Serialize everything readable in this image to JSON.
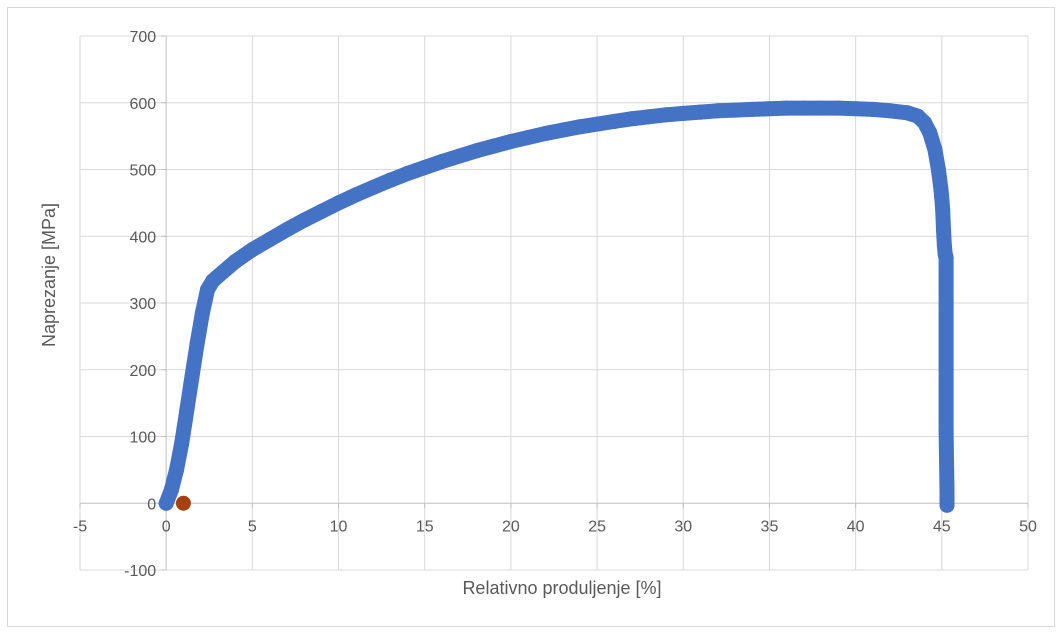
{
  "chart_data": {
    "type": "scatter",
    "title": "",
    "xlabel": "Relativno produljenje [%]",
    "ylabel": "Naprezanje [MPa]",
    "xlim": [
      -5,
      50
    ],
    "ylim": [
      -100,
      700
    ],
    "x_ticks": [
      -5,
      0,
      5,
      10,
      15,
      20,
      25,
      30,
      35,
      40,
      45,
      50
    ],
    "y_ticks": [
      -100,
      0,
      100,
      200,
      300,
      400,
      500,
      600,
      700
    ],
    "x_tick_labels": [
      "-5",
      "0",
      "5",
      "10",
      "15",
      "20",
      "25",
      "30",
      "35",
      "40",
      "45",
      "50"
    ],
    "y_tick_labels": [
      "-100",
      "0",
      "100",
      "200",
      "300",
      "400",
      "500",
      "600",
      "700"
    ],
    "grid": true,
    "legend": "none",
    "series": [
      {
        "color": "#4472c4",
        "style": "dense-markers",
        "points": [
          [
            0,
            0
          ],
          [
            0.3,
            20
          ],
          [
            0.6,
            50
          ],
          [
            0.9,
            90
          ],
          [
            1.2,
            140
          ],
          [
            1.5,
            190
          ],
          [
            1.8,
            240
          ],
          [
            2.1,
            285
          ],
          [
            2.4,
            320
          ],
          [
            2.7,
            333
          ],
          [
            3.0,
            340
          ],
          [
            4.0,
            362
          ],
          [
            5.0,
            380
          ],
          [
            6.0,
            395
          ],
          [
            7.0,
            410
          ],
          [
            8.0,
            424
          ],
          [
            9.0,
            437
          ],
          [
            10.0,
            450
          ],
          [
            11.0,
            462
          ],
          [
            12.0,
            473
          ],
          [
            13.0,
            484
          ],
          [
            14.0,
            494
          ],
          [
            15.0,
            503
          ],
          [
            16.0,
            512
          ],
          [
            17.0,
            520
          ],
          [
            18.0,
            528
          ],
          [
            19.0,
            535
          ],
          [
            20.0,
            542
          ],
          [
            21.0,
            548
          ],
          [
            22.0,
            554
          ],
          [
            23.0,
            559
          ],
          [
            24.0,
            564
          ],
          [
            25.0,
            568
          ],
          [
            26.0,
            572
          ],
          [
            27.0,
            576
          ],
          [
            28.0,
            579
          ],
          [
            29.0,
            582
          ],
          [
            30.0,
            584
          ],
          [
            31.0,
            586
          ],
          [
            32.0,
            588
          ],
          [
            33.0,
            589
          ],
          [
            34.0,
            590
          ],
          [
            35.0,
            591
          ],
          [
            36.0,
            592
          ],
          [
            37.0,
            592
          ],
          [
            38.0,
            592
          ],
          [
            39.0,
            592
          ],
          [
            40.0,
            591
          ],
          [
            41.0,
            590
          ],
          [
            42.0,
            588
          ],
          [
            43.0,
            585
          ],
          [
            43.6,
            580
          ],
          [
            44.0,
            570
          ],
          [
            44.3,
            555
          ],
          [
            44.6,
            530
          ],
          [
            44.8,
            500
          ],
          [
            44.95,
            470
          ],
          [
            45.05,
            440
          ],
          [
            45.1,
            410
          ],
          [
            45.15,
            385
          ],
          [
            45.2,
            372
          ],
          [
            45.25,
            368
          ],
          [
            45.25,
            297
          ],
          [
            45.25,
            200
          ],
          [
            45.25,
            108
          ],
          [
            45.3,
            18
          ],
          [
            45.3,
            0
          ],
          [
            45.3,
            -3
          ]
        ]
      },
      {
        "color": "#a5410e",
        "style": "single-marker",
        "points": [
          [
            1.0,
            0
          ]
        ]
      }
    ]
  }
}
